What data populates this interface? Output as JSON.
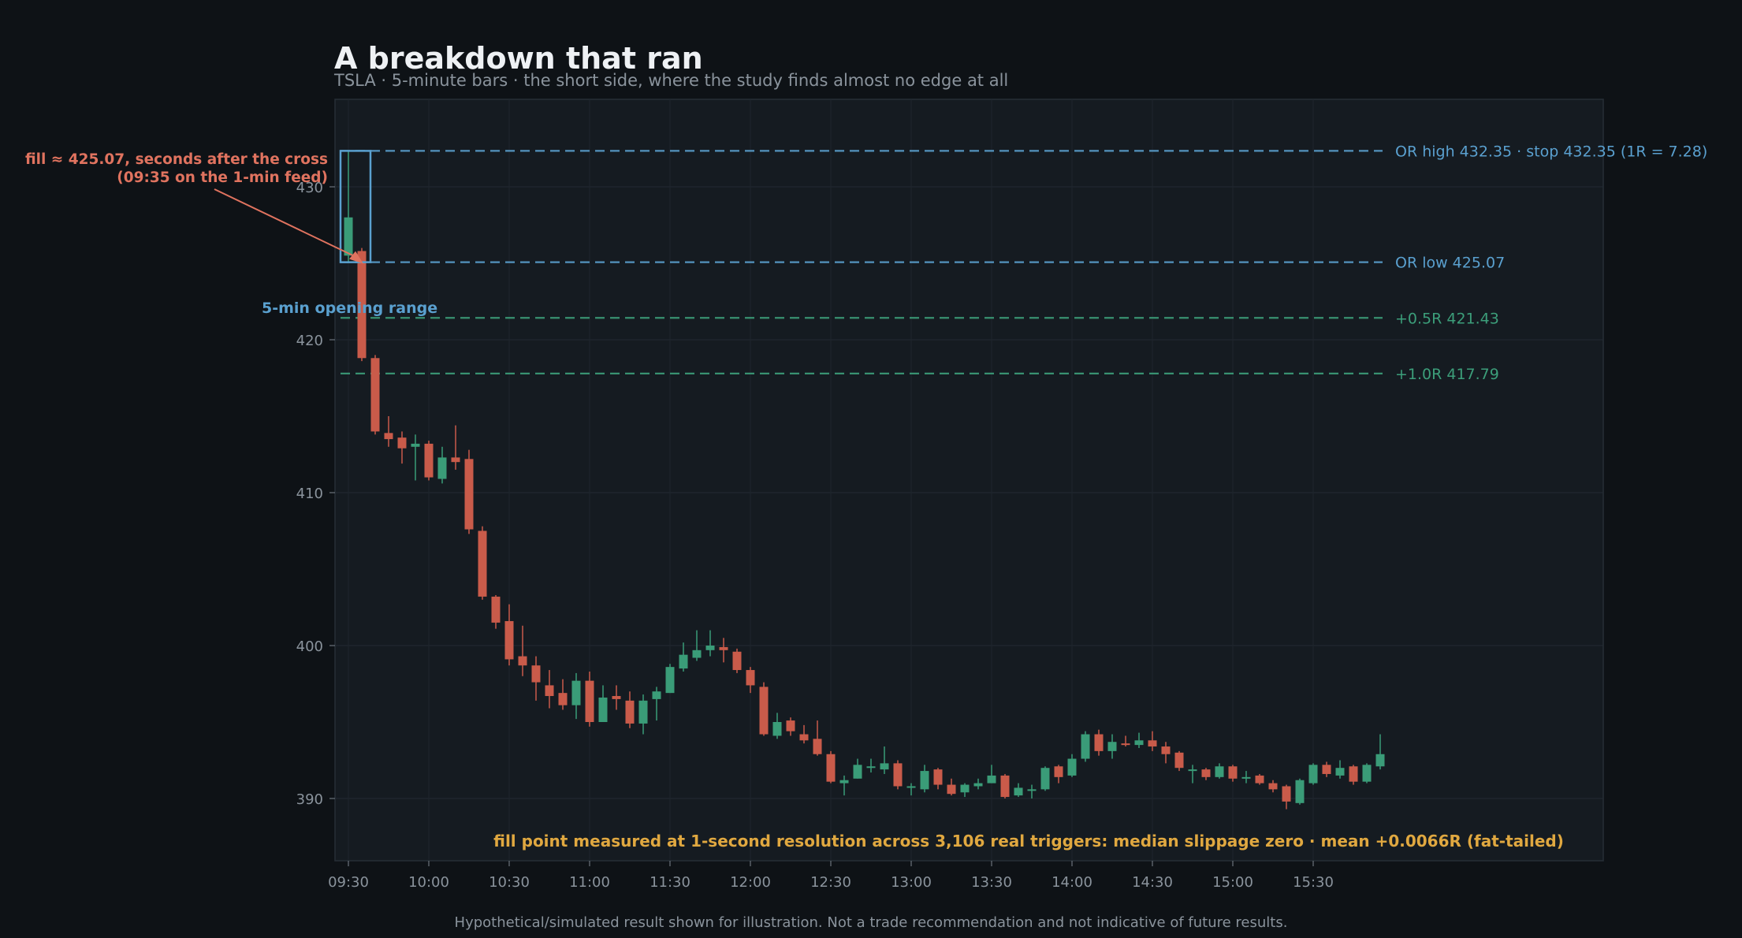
{
  "title": "A breakdown that ran",
  "subtitle": "TSLA · 5-minute bars · the short side, where the study finds almost no edge at all",
  "footer": "Hypothetical/simulated result shown for illustration. Not a trade recommendation and not indicative of future results.",
  "colors": {
    "background": "#0e1216",
    "panel": "#151b21",
    "up": "#3a9c78",
    "down": "#c95b4a",
    "opening_range": "#5aa0cf",
    "target": "#3c9e7a",
    "fill_annotation": "#e0735f",
    "note": "#e0a840",
    "axis_text": "#8a939c"
  },
  "chart_data": {
    "type": "candlestick",
    "ylim": [
      386,
      435.5
    ],
    "yticks": [
      390,
      400,
      410,
      420,
      430
    ],
    "xticks": [
      "09:30",
      "10:00",
      "10:30",
      "11:00",
      "11:30",
      "12:00",
      "12:30",
      "13:00",
      "13:30",
      "14:00",
      "14:30",
      "15:00",
      "15:30"
    ],
    "bar_minutes": 5,
    "x_start": "09:30",
    "grid": true,
    "levels": [
      {
        "name": "or-high",
        "value": 432.35,
        "label": "OR high 432.35 · stop 432.35  (1R = 7.28)",
        "color": "#5aa0cf"
      },
      {
        "name": "or-low",
        "value": 425.07,
        "label": "OR low 425.07",
        "color": "#5aa0cf"
      },
      {
        "name": "target-half-r",
        "value": 421.43,
        "label": "+0.5R  421.43",
        "color": "#3c9e7a"
      },
      {
        "name": "target-one-r",
        "value": 417.79,
        "label": "+1.0R  417.79",
        "color": "#3c9e7a"
      }
    ],
    "opening_range": {
      "label": "5-min opening range",
      "high": 432.35,
      "low": 425.07
    },
    "fill_annotation": {
      "lines": [
        "fill ≈ 425.07, seconds after the cross",
        "(09:35 on the 1-min feed)"
      ],
      "price": 425.07,
      "bar_index": 1
    },
    "note": "fill point measured at 1-second resolution across 3,106 real triggers: median slippage zero · mean +0.0066R (fat-tailed)",
    "candles": [
      {
        "o": 425.5,
        "h": 432.3,
        "l": 425.1,
        "c": 428.0
      },
      {
        "o": 425.8,
        "h": 426.0,
        "l": 418.6,
        "c": 418.8
      },
      {
        "o": 418.8,
        "h": 419.0,
        "l": 413.8,
        "c": 414.0
      },
      {
        "o": 413.9,
        "h": 415.0,
        "l": 413.0,
        "c": 413.5
      },
      {
        "o": 413.6,
        "h": 414.0,
        "l": 411.9,
        "c": 412.9
      },
      {
        "o": 413.0,
        "h": 413.8,
        "l": 410.8,
        "c": 413.2
      },
      {
        "o": 413.2,
        "h": 413.4,
        "l": 410.8,
        "c": 411.0
      },
      {
        "o": 410.9,
        "h": 413.0,
        "l": 410.6,
        "c": 412.3
      },
      {
        "o": 412.3,
        "h": 414.4,
        "l": 411.5,
        "c": 412.0
      },
      {
        "o": 412.2,
        "h": 412.8,
        "l": 407.3,
        "c": 407.6
      },
      {
        "o": 407.5,
        "h": 407.8,
        "l": 403.0,
        "c": 403.2
      },
      {
        "o": 403.2,
        "h": 403.3,
        "l": 401.1,
        "c": 401.5
      },
      {
        "o": 401.6,
        "h": 402.7,
        "l": 398.7,
        "c": 399.1
      },
      {
        "o": 399.3,
        "h": 401.3,
        "l": 398.0,
        "c": 398.7
      },
      {
        "o": 398.7,
        "h": 399.3,
        "l": 396.4,
        "c": 397.6
      },
      {
        "o": 397.4,
        "h": 398.4,
        "l": 395.9,
        "c": 396.7
      },
      {
        "o": 396.9,
        "h": 397.8,
        "l": 395.8,
        "c": 396.1
      },
      {
        "o": 396.1,
        "h": 398.2,
        "l": 395.2,
        "c": 397.7
      },
      {
        "o": 397.7,
        "h": 398.3,
        "l": 394.7,
        "c": 395.0
      },
      {
        "o": 395.0,
        "h": 397.4,
        "l": 395.0,
        "c": 396.6
      },
      {
        "o": 396.7,
        "h": 397.4,
        "l": 395.8,
        "c": 396.5
      },
      {
        "o": 396.4,
        "h": 397.0,
        "l": 394.6,
        "c": 394.9
      },
      {
        "o": 394.9,
        "h": 396.8,
        "l": 394.2,
        "c": 396.4
      },
      {
        "o": 396.5,
        "h": 397.3,
        "l": 395.1,
        "c": 397.0
      },
      {
        "o": 396.9,
        "h": 398.8,
        "l": 396.9,
        "c": 398.6
      },
      {
        "o": 398.5,
        "h": 400.2,
        "l": 398.3,
        "c": 399.4
      },
      {
        "o": 399.2,
        "h": 401.0,
        "l": 399.0,
        "c": 399.7
      },
      {
        "o": 399.7,
        "h": 401.0,
        "l": 399.3,
        "c": 400.0
      },
      {
        "o": 399.9,
        "h": 400.5,
        "l": 398.9,
        "c": 399.7
      },
      {
        "o": 399.6,
        "h": 399.8,
        "l": 398.2,
        "c": 398.4
      },
      {
        "o": 398.4,
        "h": 398.6,
        "l": 396.9,
        "c": 397.4
      },
      {
        "o": 397.3,
        "h": 397.6,
        "l": 394.1,
        "c": 394.2
      },
      {
        "o": 394.1,
        "h": 395.6,
        "l": 393.9,
        "c": 395.0
      },
      {
        "o": 395.1,
        "h": 395.3,
        "l": 394.1,
        "c": 394.4
      },
      {
        "o": 394.2,
        "h": 394.8,
        "l": 393.6,
        "c": 393.8
      },
      {
        "o": 393.9,
        "h": 395.1,
        "l": 392.8,
        "c": 392.9
      },
      {
        "o": 392.9,
        "h": 393.1,
        "l": 391.0,
        "c": 391.1
      },
      {
        "o": 391.0,
        "h": 391.5,
        "l": 390.2,
        "c": 391.2
      },
      {
        "o": 391.3,
        "h": 392.6,
        "l": 391.3,
        "c": 392.2
      },
      {
        "o": 392.0,
        "h": 392.6,
        "l": 391.7,
        "c": 392.1
      },
      {
        "o": 391.9,
        "h": 393.4,
        "l": 391.6,
        "c": 392.3
      },
      {
        "o": 392.3,
        "h": 392.5,
        "l": 390.6,
        "c": 390.8
      },
      {
        "o": 390.7,
        "h": 391.0,
        "l": 390.2,
        "c": 390.8
      },
      {
        "o": 390.6,
        "h": 392.2,
        "l": 390.4,
        "c": 391.8
      },
      {
        "o": 391.9,
        "h": 392.0,
        "l": 390.6,
        "c": 390.9
      },
      {
        "o": 390.9,
        "h": 391.3,
        "l": 390.2,
        "c": 390.3
      },
      {
        "o": 390.4,
        "h": 391.0,
        "l": 390.1,
        "c": 390.9
      },
      {
        "o": 390.8,
        "h": 391.3,
        "l": 390.6,
        "c": 391.0
      },
      {
        "o": 391.0,
        "h": 392.2,
        "l": 391.0,
        "c": 391.5
      },
      {
        "o": 391.5,
        "h": 391.6,
        "l": 390.0,
        "c": 390.1
      },
      {
        "o": 390.2,
        "h": 391.0,
        "l": 390.1,
        "c": 390.7
      },
      {
        "o": 390.6,
        "h": 390.9,
        "l": 390.0,
        "c": 390.6
      },
      {
        "o": 390.6,
        "h": 392.1,
        "l": 390.5,
        "c": 392.0
      },
      {
        "o": 392.1,
        "h": 392.2,
        "l": 391.0,
        "c": 391.4
      },
      {
        "o": 391.5,
        "h": 392.9,
        "l": 391.4,
        "c": 392.6
      },
      {
        "o": 392.6,
        "h": 394.4,
        "l": 392.4,
        "c": 394.2
      },
      {
        "o": 394.2,
        "h": 394.5,
        "l": 392.8,
        "c": 393.1
      },
      {
        "o": 393.1,
        "h": 394.2,
        "l": 392.6,
        "c": 393.7
      },
      {
        "o": 393.6,
        "h": 394.1,
        "l": 393.4,
        "c": 393.5
      },
      {
        "o": 393.5,
        "h": 394.3,
        "l": 393.3,
        "c": 393.8
      },
      {
        "o": 393.8,
        "h": 394.4,
        "l": 393.1,
        "c": 393.4
      },
      {
        "o": 393.4,
        "h": 393.7,
        "l": 392.3,
        "c": 392.9
      },
      {
        "o": 393.0,
        "h": 393.1,
        "l": 391.8,
        "c": 392.0
      },
      {
        "o": 391.9,
        "h": 392.2,
        "l": 391.0,
        "c": 391.9
      },
      {
        "o": 391.9,
        "h": 392.0,
        "l": 391.2,
        "c": 391.4
      },
      {
        "o": 391.4,
        "h": 392.3,
        "l": 391.3,
        "c": 392.1
      },
      {
        "o": 392.1,
        "h": 392.2,
        "l": 391.1,
        "c": 391.3
      },
      {
        "o": 391.3,
        "h": 391.8,
        "l": 391.0,
        "c": 391.4
      },
      {
        "o": 391.5,
        "h": 391.6,
        "l": 390.9,
        "c": 391.0
      },
      {
        "o": 391.0,
        "h": 391.2,
        "l": 390.4,
        "c": 390.6
      },
      {
        "o": 390.8,
        "h": 390.9,
        "l": 389.3,
        "c": 389.8
      },
      {
        "o": 389.7,
        "h": 391.3,
        "l": 389.6,
        "c": 391.2
      },
      {
        "o": 391.0,
        "h": 392.3,
        "l": 390.9,
        "c": 392.2
      },
      {
        "o": 392.2,
        "h": 392.4,
        "l": 391.4,
        "c": 391.6
      },
      {
        "o": 391.5,
        "h": 392.5,
        "l": 391.3,
        "c": 392.0
      },
      {
        "o": 392.1,
        "h": 392.2,
        "l": 390.9,
        "c": 391.1
      },
      {
        "o": 391.1,
        "h": 392.3,
        "l": 391.0,
        "c": 392.2
      },
      {
        "o": 392.1,
        "h": 394.2,
        "l": 391.9,
        "c": 392.9
      }
    ]
  }
}
